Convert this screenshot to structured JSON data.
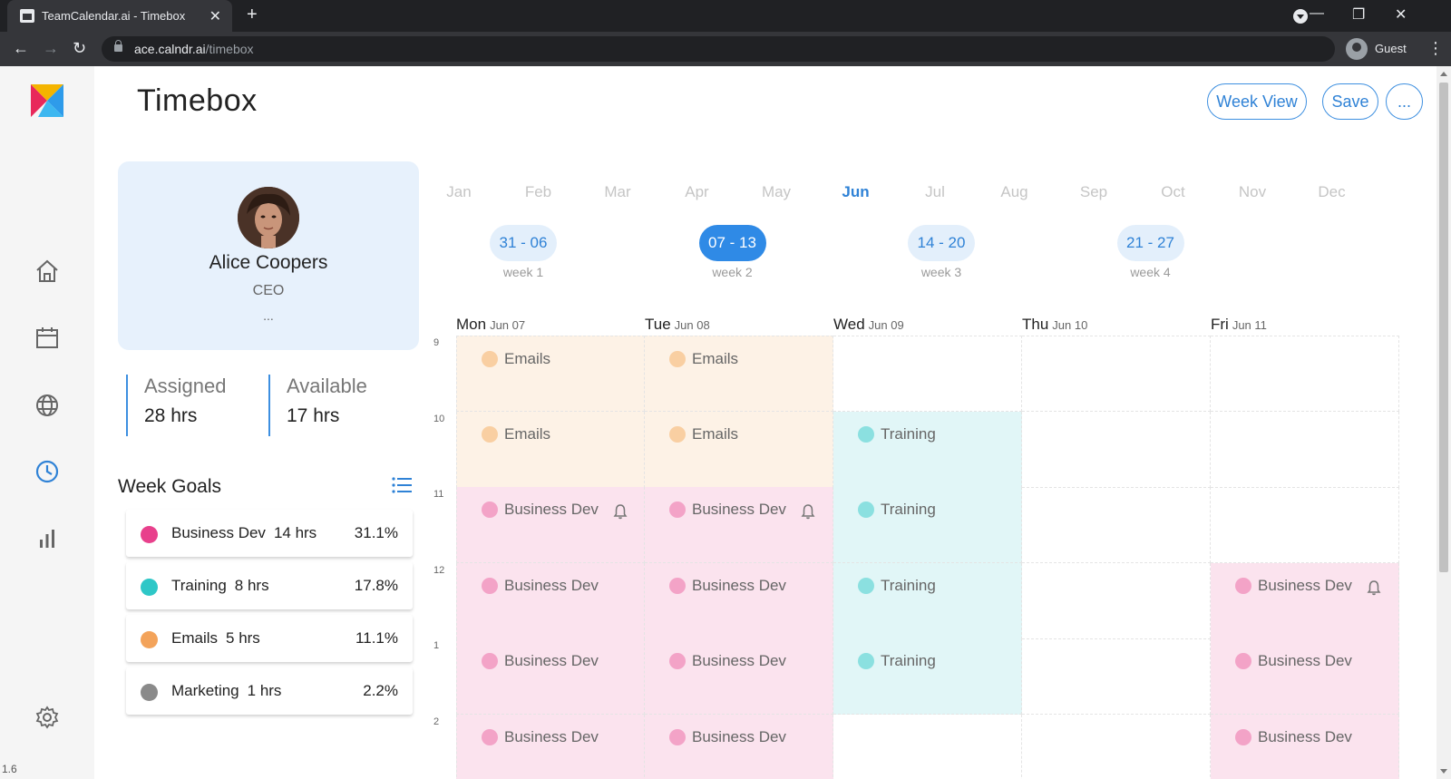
{
  "browser": {
    "tab_title": "TeamCalendar.ai - Timebox",
    "url_host": "ace.calndr.ai",
    "url_path": "/timebox",
    "profile_label": "Guest"
  },
  "app": {
    "version": "1.6",
    "page_title": "Timebox",
    "buttons": {
      "week_view": "Week View",
      "save": "Save",
      "more": "..."
    }
  },
  "profile": {
    "name": "Alice Coopers",
    "role": "CEO",
    "more": "..."
  },
  "stats": {
    "assigned_label": "Assigned",
    "assigned_value": "28 hrs",
    "available_label": "Available",
    "available_value": "17 hrs"
  },
  "goals": {
    "title": "Week Goals",
    "items": [
      {
        "name": "Business Dev",
        "hours": "14 hrs",
        "pct": "31.1%",
        "color": "#e8408c"
      },
      {
        "name": "Training",
        "hours": "8 hrs",
        "pct": "17.8%",
        "color": "#2ec7c7"
      },
      {
        "name": "Emails",
        "hours": "5 hrs",
        "pct": "11.1%",
        "color": "#f3a35a"
      },
      {
        "name": "Marketing",
        "hours": "1 hrs",
        "pct": "2.2%",
        "color": "#8a8a8a"
      }
    ]
  },
  "months": [
    "Jan",
    "Feb",
    "Mar",
    "Apr",
    "May",
    "Jun",
    "Jul",
    "Aug",
    "Sep",
    "Oct",
    "Nov",
    "Dec"
  ],
  "active_month": "Jun",
  "weeks": [
    {
      "range": "31 - 06",
      "label": "week 1",
      "active": false
    },
    {
      "range": "07 - 13",
      "label": "week 2",
      "active": true
    },
    {
      "range": "14 - 20",
      "label": "week 3",
      "active": false
    },
    {
      "range": "21 - 27",
      "label": "week 4",
      "active": false
    }
  ],
  "days": [
    {
      "name": "Mon",
      "date": "Jun 07"
    },
    {
      "name": "Tue",
      "date": "Jun 08"
    },
    {
      "name": "Wed",
      "date": "Jun 09"
    },
    {
      "name": "Thu",
      "date": "Jun 10"
    },
    {
      "name": "Fri",
      "date": "Jun 11"
    }
  ],
  "hours": [
    "9",
    "10",
    "11",
    "12",
    "1",
    "2"
  ],
  "categories": {
    "Emails": {
      "bg": "#fdf2e6",
      "dot": "#f9cfa2"
    },
    "Business Dev": {
      "bg": "#fbe3ee",
      "dot": "#f3a3c7"
    },
    "Training": {
      "bg": "#e1f6f7",
      "dot": "#8be0e0"
    }
  },
  "schedule": [
    [
      "Emails",
      "Emails",
      null,
      null,
      null
    ],
    [
      "Emails",
      "Emails",
      "Training",
      null,
      null
    ],
    [
      "Business Dev",
      "Business Dev",
      "Training",
      null,
      null
    ],
    [
      "Business Dev",
      "Business Dev",
      "Training",
      null,
      "Business Dev"
    ],
    [
      "Business Dev",
      "Business Dev",
      "Training",
      null,
      "Business Dev"
    ],
    [
      "Business Dev",
      "Business Dev",
      null,
      null,
      "Business Dev"
    ]
  ],
  "reminders": [
    [
      2,
      0
    ],
    [
      2,
      1
    ],
    [
      3,
      4
    ]
  ]
}
